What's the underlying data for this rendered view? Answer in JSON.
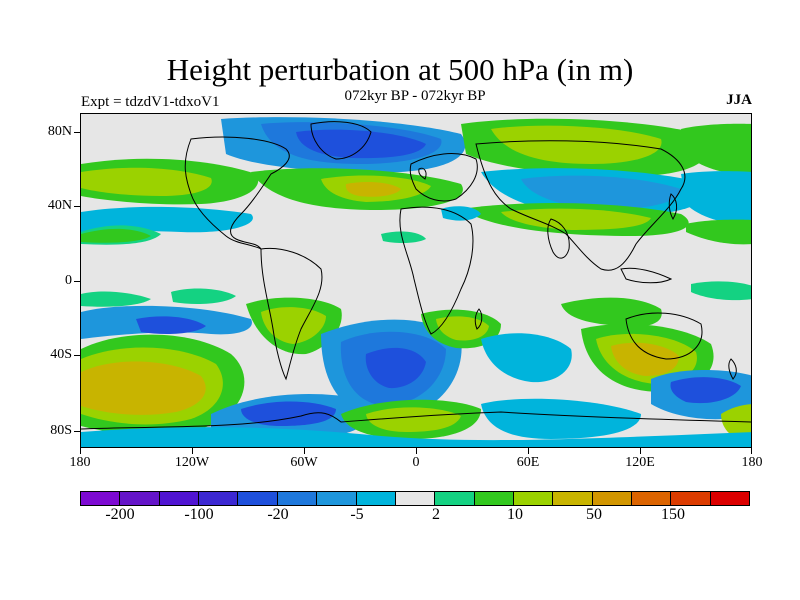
{
  "header": {
    "title": "Height perturbation at 500 hPa (in m)",
    "subtitle": "072kyr BP - 072kyr BP",
    "experiment": "Expt = tdzdV1-tdxoV1",
    "season": "JJA"
  },
  "map": {
    "lat_labels": [
      "80N",
      "40N",
      "0",
      "40S",
      "80S"
    ],
    "lon_labels": [
      "180",
      "120W",
      "60W",
      "0",
      "60E",
      "120E",
      "180"
    ],
    "land_outline_color": "#000000",
    "background_color": "#e6e6e6"
  },
  "colorbar": {
    "colors": [
      "#7d0ad2",
      "#6414c8",
      "#5014d2",
      "#3c28d2",
      "#1e50dc",
      "#1e78dc",
      "#1e96dc",
      "#00b4dc",
      "#e6e6e6",
      "#14d282",
      "#32c81e",
      "#9bd200",
      "#c8b400",
      "#d29600",
      "#dc6400",
      "#dc3c00",
      "#dc0000"
    ],
    "labels": [
      "-200",
      "-100",
      "-20",
      "-5",
      "2",
      "10",
      "50",
      "150"
    ]
  }
}
